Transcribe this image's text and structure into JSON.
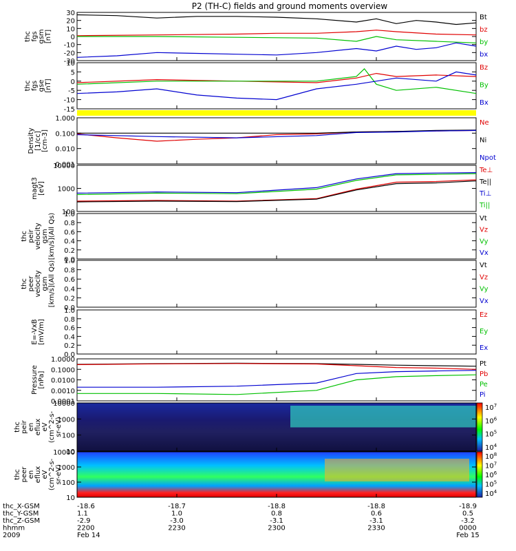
{
  "title": "P2 (TH-C) fields and ground moments overview",
  "colors": {
    "black": "#000000",
    "red": "#e00000",
    "green": "#00c000",
    "blue": "#0000d0",
    "yellow": "#ffff00"
  },
  "footer": {
    "rows": [
      {
        "label": "thc_X-GSM",
        "values": [
          "-18.6",
          "-18.7",
          "-18.8",
          "-18.8",
          "-18.9"
        ]
      },
      {
        "label": "thc_Y-GSM",
        "values": [
          "1.1",
          "1.0",
          "0.8",
          "0.6",
          "0.5"
        ]
      },
      {
        "label": "thc_Z-GSM",
        "values": [
          "-2.9",
          "-3.0",
          "-3.1",
          "-3.1",
          "-3.2"
        ]
      },
      {
        "label": "hhmm",
        "values": [
          "2200",
          "2230",
          "2300",
          "2330",
          "0000"
        ]
      },
      {
        "label": "2009",
        "values": [
          "Feb 14",
          "",
          "",
          "",
          "Feb 15"
        ]
      }
    ]
  },
  "chart_data": [
    {
      "id": "fgs_gsm",
      "type": "line",
      "ylabel": [
        "thc",
        "fgs",
        "gsm",
        "[nT]"
      ],
      "ylim": [
        -30,
        30
      ],
      "ticks": [
        "30",
        "20",
        "10",
        "0",
        "-10",
        "-20",
        "-30"
      ],
      "series": [
        {
          "name": "Bt",
          "color": "#000000",
          "points": [
            [
              0,
              27
            ],
            [
              0.1,
              26
            ],
            [
              0.2,
              23
            ],
            [
              0.3,
              25
            ],
            [
              0.4,
              25
            ],
            [
              0.5,
              24
            ],
            [
              0.6,
              22
            ],
            [
              0.7,
              18
            ],
            [
              0.75,
              22
            ],
            [
              0.8,
              16
            ],
            [
              0.85,
              20
            ],
            [
              0.9,
              18
            ],
            [
              0.95,
              15
            ],
            [
              1,
              17
            ]
          ]
        },
        {
          "name": "bz",
          "color": "#e00000",
          "points": [
            [
              0,
              1
            ],
            [
              0.2,
              2
            ],
            [
              0.4,
              3
            ],
            [
              0.5,
              4
            ],
            [
              0.6,
              4
            ],
            [
              0.7,
              6
            ],
            [
              0.75,
              8
            ],
            [
              0.8,
              6
            ],
            [
              0.9,
              3
            ],
            [
              1,
              2
            ]
          ]
        },
        {
          "name": "by",
          "color": "#00c000",
          "points": [
            [
              0,
              0
            ],
            [
              0.2,
              0
            ],
            [
              0.4,
              -1
            ],
            [
              0.6,
              -2
            ],
            [
              0.7,
              -6
            ],
            [
              0.75,
              0
            ],
            [
              0.8,
              -4
            ],
            [
              0.9,
              -6
            ],
            [
              1,
              -8
            ]
          ]
        },
        {
          "name": "bx",
          "color": "#0000d0",
          "points": [
            [
              0,
              -26
            ],
            [
              0.1,
              -24
            ],
            [
              0.2,
              -20
            ],
            [
              0.3,
              -21
            ],
            [
              0.4,
              -22
            ],
            [
              0.5,
              -23
            ],
            [
              0.6,
              -20
            ],
            [
              0.7,
              -15
            ],
            [
              0.75,
              -18
            ],
            [
              0.8,
              -12
            ],
            [
              0.85,
              -16
            ],
            [
              0.9,
              -14
            ],
            [
              0.95,
              -8
            ],
            [
              1,
              -12
            ]
          ]
        }
      ],
      "legend": [
        "Bt",
        "bz",
        "by",
        "bx"
      ]
    },
    {
      "id": "fgs_gse",
      "type": "line",
      "ylabel": [
        "thc",
        "fgs",
        "gse",
        "[nT]"
      ],
      "ylim": [
        -18,
        12
      ],
      "ticks": [
        "10",
        "5",
        "0",
        "-5",
        "-10",
        "-15"
      ],
      "series": [
        {
          "name": "Bz",
          "color": "#e00000",
          "points": [
            [
              0,
              -1
            ],
            [
              0.2,
              1
            ],
            [
              0.4,
              0
            ],
            [
              0.6,
              -1
            ],
            [
              0.7,
              2
            ],
            [
              0.75,
              5
            ],
            [
              0.8,
              3
            ],
            [
              0.9,
              4
            ],
            [
              1,
              3
            ]
          ]
        },
        {
          "name": "By",
          "color": "#00c000",
          "points": [
            [
              0,
              -2
            ],
            [
              0.2,
              0
            ],
            [
              0.4,
              0
            ],
            [
              0.6,
              0
            ],
            [
              0.7,
              3
            ],
            [
              0.72,
              8
            ],
            [
              0.75,
              -2
            ],
            [
              0.8,
              -6
            ],
            [
              0.9,
              -4
            ],
            [
              1,
              -8
            ]
          ]
        },
        {
          "name": "Bx",
          "color": "#0000d0",
          "points": [
            [
              0,
              -8
            ],
            [
              0.1,
              -7
            ],
            [
              0.2,
              -5
            ],
            [
              0.3,
              -9
            ],
            [
              0.4,
              -11
            ],
            [
              0.5,
              -12
            ],
            [
              0.6,
              -5
            ],
            [
              0.7,
              -2
            ],
            [
              0.75,
              0
            ],
            [
              0.8,
              2
            ],
            [
              0.9,
              0
            ],
            [
              0.95,
              6
            ],
            [
              1,
              4
            ]
          ]
        }
      ],
      "legend": [
        "Bz",
        "By",
        "Bx"
      ]
    },
    {
      "id": "density",
      "type": "line",
      "log": true,
      "ylabel": [
        "Density",
        "[1/cc]",
        "[cm-3]"
      ],
      "ylim": [
        0.001,
        1
      ],
      "ticks": [
        "1.000",
        "0.100",
        "0.010",
        "0.001"
      ],
      "series": [
        {
          "name": "Ne",
          "color": "#e00000",
          "points": [
            [
              0,
              0.09
            ],
            [
              0.1,
              0.05
            ],
            [
              0.2,
              0.03
            ],
            [
              0.3,
              0.04
            ],
            [
              0.4,
              0.05
            ],
            [
              0.5,
              0.08
            ],
            [
              0.6,
              0.09
            ],
            [
              0.7,
              0.12
            ],
            [
              0.8,
              0.13
            ],
            [
              0.9,
              0.14
            ],
            [
              1,
              0.15
            ]
          ]
        },
        {
          "name": "Ni",
          "color": "#000000",
          "points": [
            [
              0,
              0.1
            ],
            [
              0.2,
              0.1
            ],
            [
              0.4,
              0.1
            ],
            [
              0.6,
              0.1
            ],
            [
              0.7,
              0.12
            ],
            [
              0.8,
              0.13
            ],
            [
              0.9,
              0.15
            ],
            [
              1,
              0.16
            ]
          ]
        },
        {
          "name": "Npot",
          "color": "#0000d0",
          "points": [
            [
              0,
              0.08
            ],
            [
              0.2,
              0.06
            ],
            [
              0.4,
              0.05
            ],
            [
              0.6,
              0.07
            ],
            [
              0.7,
              0.11
            ],
            [
              0.8,
              0.12
            ],
            [
              0.9,
              0.14
            ],
            [
              1,
              0.15
            ]
          ]
        }
      ],
      "legend": [
        "Ne",
        "Ni",
        "Npot"
      ]
    },
    {
      "id": "temperature",
      "type": "line",
      "log": true,
      "ylabel": [
        "magt3",
        "[eV]"
      ],
      "ylim": [
        30,
        10000
      ],
      "ticks": [
        "10000",
        "1000",
        "100"
      ],
      "series": [
        {
          "name": "Te⊥",
          "color": "#e00000",
          "points": [
            [
              0,
              110
            ],
            [
              0.2,
              120
            ],
            [
              0.4,
              110
            ],
            [
              0.6,
              150
            ],
            [
              0.7,
              500
            ],
            [
              0.8,
              1200
            ],
            [
              0.9,
              1300
            ],
            [
              1,
              1600
            ]
          ]
        },
        {
          "name": "Te||",
          "color": "#000000",
          "points": [
            [
              0,
              100
            ],
            [
              0.2,
              110
            ],
            [
              0.4,
              105
            ],
            [
              0.6,
              140
            ],
            [
              0.7,
              450
            ],
            [
              0.8,
              1000
            ],
            [
              0.9,
              1100
            ],
            [
              1,
              1400
            ]
          ]
        },
        {
          "name": "Ti⊥",
          "color": "#0000d0",
          "points": [
            [
              0,
              300
            ],
            [
              0.2,
              350
            ],
            [
              0.4,
              320
            ],
            [
              0.6,
              600
            ],
            [
              0.7,
              1800
            ],
            [
              0.8,
              3500
            ],
            [
              0.9,
              3800
            ],
            [
              1,
              4000
            ]
          ]
        },
        {
          "name": "Ti||",
          "color": "#00c000",
          "points": [
            [
              0,
              250
            ],
            [
              0.2,
              300
            ],
            [
              0.4,
              280
            ],
            [
              0.6,
              500
            ],
            [
              0.7,
              1500
            ],
            [
              0.8,
              3000
            ],
            [
              0.9,
              3200
            ],
            [
              1,
              3500
            ]
          ]
        }
      ],
      "legend": [
        "Te⊥",
        "Te||",
        "Ti⊥",
        "Ti||"
      ]
    },
    {
      "id": "peir_velocity",
      "type": "line",
      "ylabel": [
        "thc",
        "peir",
        "velocity",
        "gsm",
        "[km/s](All Qs)"
      ],
      "ylim": [
        0,
        1
      ],
      "ticks": [
        "1.0",
        "0.8",
        "0.6",
        "0.4",
        "0.2",
        "0.0"
      ],
      "series": [],
      "legend": [
        "Vt",
        "Vz",
        "Vy",
        "Vx"
      ]
    },
    {
      "id": "peer_velocity",
      "type": "line",
      "ylabel": [
        "thc",
        "peer",
        "velocity",
        "gsm",
        "[km/s](All Qs)"
      ],
      "ylim": [
        0,
        1
      ],
      "ticks": [
        "1.0",
        "0.8",
        "0.6",
        "0.4",
        "0.2",
        "0.0"
      ],
      "series": [],
      "legend": [
        "Vt",
        "Vz",
        "Vy",
        "Vx"
      ]
    },
    {
      "id": "efield",
      "type": "line",
      "ylabel": [
        "E=-VxB",
        "[mV/m]"
      ],
      "ylim": [
        0,
        1
      ],
      "ticks": [
        "1.0",
        "0.8",
        "0.6",
        "0.4",
        "0.2",
        "0.0"
      ],
      "series": [],
      "legend": [
        "Ez",
        "Ey",
        "Ex"
      ]
    },
    {
      "id": "pressure",
      "type": "line",
      "log": true,
      "ylabel": [
        "Pressure",
        "[nPa]"
      ],
      "ylim": [
        0.0001,
        1
      ],
      "ticks": [
        "1.0000",
        "0.1000",
        "0.0100",
        "0.0010",
        "0.0001"
      ],
      "series": [
        {
          "name": "Pt",
          "color": "#000000",
          "points": [
            [
              0,
              0.3
            ],
            [
              0.2,
              0.35
            ],
            [
              0.4,
              0.38
            ],
            [
              0.6,
              0.35
            ],
            [
              0.7,
              0.3
            ],
            [
              0.8,
              0.25
            ],
            [
              0.9,
              0.22
            ],
            [
              1,
              0.2
            ]
          ]
        },
        {
          "name": "Pb",
          "color": "#e00000",
          "points": [
            [
              0,
              0.28
            ],
            [
              0.2,
              0.33
            ],
            [
              0.4,
              0.36
            ],
            [
              0.6,
              0.32
            ],
            [
              0.7,
              0.22
            ],
            [
              0.8,
              0.15
            ],
            [
              0.9,
              0.13
            ],
            [
              1,
              0.1
            ]
          ]
        },
        {
          "name": "Pe",
          "color": "#00c000",
          "points": [
            [
              0,
              0.0005
            ],
            [
              0.2,
              0.0005
            ],
            [
              0.4,
              0.0004
            ],
            [
              0.6,
              0.001
            ],
            [
              0.7,
              0.01
            ],
            [
              0.8,
              0.02
            ],
            [
              0.9,
              0.025
            ],
            [
              1,
              0.03
            ]
          ]
        },
        {
          "name": "Pi",
          "color": "#0000d0",
          "points": [
            [
              0,
              0.002
            ],
            [
              0.2,
              0.002
            ],
            [
              0.4,
              0.0025
            ],
            [
              0.6,
              0.005
            ],
            [
              0.7,
              0.04
            ],
            [
              0.8,
              0.06
            ],
            [
              0.9,
              0.07
            ],
            [
              1,
              0.08
            ]
          ]
        }
      ],
      "legend": [
        "Pt",
        "Pb",
        "Pe",
        "Pi"
      ]
    },
    {
      "id": "peir_spec",
      "type": "heatmap",
      "ylabel": [
        "thc",
        "peir",
        "en",
        "eflux",
        "eV",
        "(cm^2-s-",
        "sr-eV)"
      ],
      "ticks": [
        "10000",
        "1000",
        "100",
        "10"
      ],
      "colorbar": [
        "10^7",
        "10^6",
        "10^5",
        "10^4"
      ]
    },
    {
      "id": "peer_spec",
      "type": "heatmap",
      "ylabel": [
        "thc",
        "peer",
        "en",
        "eflux",
        "eV",
        "(cm^2-s-",
        "sr-eV)"
      ],
      "ticks": [
        "10000",
        "1000",
        "100",
        "10"
      ],
      "colorbar": [
        "10^8",
        "10^7",
        "10^6",
        "10^5",
        "10^4"
      ]
    }
  ]
}
